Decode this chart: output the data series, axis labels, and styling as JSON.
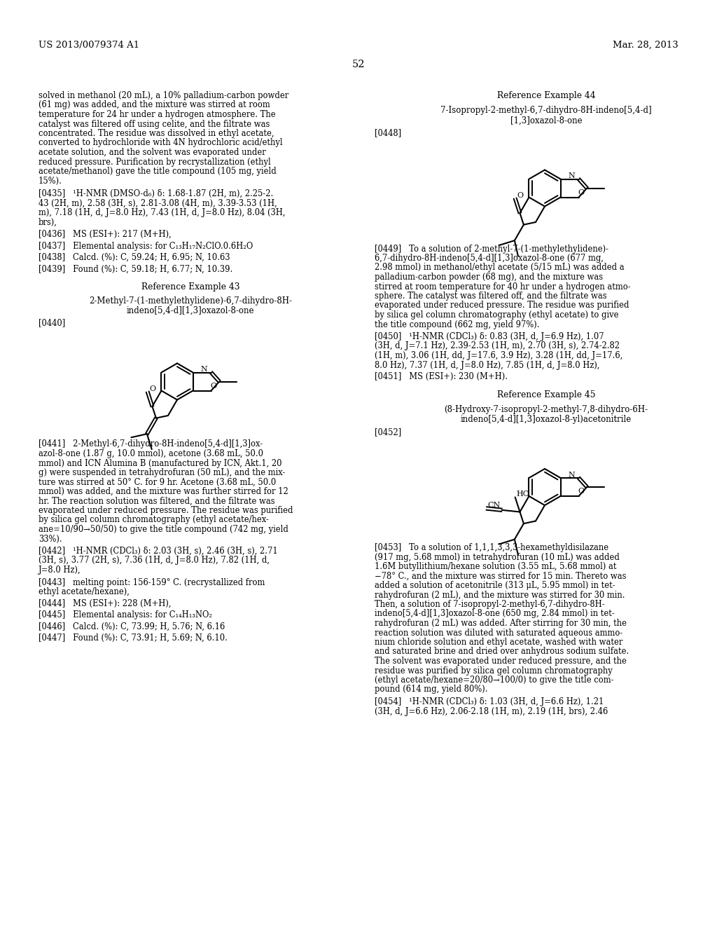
{
  "background_color": "#ffffff",
  "header_left": "US 2013/0079374 A1",
  "header_right": "Mar. 28, 2013",
  "page_number": "52",
  "left_col_intro": [
    "solved in methanol (20 mL), a 10% palladium-carbon powder",
    "(61 mg) was added, and the mixture was stirred at room",
    "temperature for 24 hr under a hydrogen atmosphere. The",
    "catalyst was filtered off using celite, and the filtrate was",
    "concentrated. The residue was dissolved in ethyl acetate,",
    "converted to hydrochloride with 4N hydrochloric acid/ethyl",
    "acetate solution, and the solvent was evaporated under",
    "reduced pressure. Purification by recrystallization (ethyl",
    "acetate/methanol) gave the title compound (105 mg, yield",
    "15%)."
  ],
  "p435": [
    "[0435]   ¹H-NMR (DMSO-d₆) δ: 1.68-1.87 (2H, m), 2.25-2.",
    "43 (2H, m), 2.58 (3H, s), 2.81-3.08 (4H, m), 3.39-3.53 (1H,",
    "m), 7.18 (1H, d, J=8.0 Hz), 7.43 (1H, d, J=8.0 Hz), 8.04 (3H,",
    "brs),"
  ],
  "p436": "[0436]   MS (ESI+): 217 (M+H),",
  "p437": "[0437]   Elemental analysis: for C₁₃H₁₇N₂ClO.0.6H₂O",
  "p438": "[0438]   Calcd. (%): C, 59.24; H, 6.95; N, 10.63",
  "p439": "[0439]   Found (%): C, 59.18; H, 6.77; N, 10.39.",
  "ref43_title": "Reference Example 43",
  "ref43_cmpd1": "2-Methyl-7-(1-methylethylidene)-6,7-dihydro-8H-",
  "ref43_cmpd2": "indeno[5,4-d][1,3]oxazol-8-one",
  "p440": "[0440]",
  "p441": [
    "[0441]   2-Methyl-6,7-dihydro-8H-indeno[5,4-d][1,3]ox-",
    "azol-8-one (1.87 g, 10.0 mmol), acetone (3.68 mL, 50.0",
    "mmol) and ICN Alumina B (manufactured by ICN, Akt.1, 20",
    "g) were suspended in tetrahydrofuran (50 mL), and the mix-",
    "ture was stirred at 50° C. for 9 hr. Acetone (3.68 mL, 50.0",
    "mmol) was added, and the mixture was further stirred for 12",
    "hr. The reaction solution was filtered, and the filtrate was",
    "evaporated under reduced pressure. The residue was purified",
    "by silica gel column chromatography (ethyl acetate/hex-",
    "ane=10/90→50/50) to give the title compound (742 mg, yield",
    "33%)."
  ],
  "p442": [
    "[0442]   ¹H-NMR (CDCl₃) δ: 2.03 (3H, s), 2.46 (3H, s), 2.71",
    "(3H, s), 3.77 (2H, s), 7.36 (1H, d, J=8.0 Hz), 7.82 (1H, d,",
    "J=8.0 Hz),"
  ],
  "p443": [
    "[0443]   melting point: 156-159° C. (recrystallized from",
    "ethyl acetate/hexane),"
  ],
  "p444": "[0444]   MS (ESI+): 228 (M+H),",
  "p445": "[0445]   Elemental analysis: for C₁₄H₁₃NO₂",
  "p446": "[0446]   Calcd. (%): C, 73.99; H, 5.76; N, 6.16",
  "p447": "[0447]   Found (%): C, 73.91; H, 5.69; N, 6.10.",
  "ref44_title": "Reference Example 44",
  "ref44_cmpd1": "7-Isopropyl-2-methyl-6,7-dihydro-8H-indeno[5,4-d]",
  "ref44_cmpd2": "[1,3]oxazol-8-one",
  "p448": "[0448]",
  "p449": [
    "[0449]   To a solution of 2-methyl-7-(1-methylethylidene)-",
    "6,7-dihydro-8H-indeno[5,4-d][1,3]oxazol-8-one (677 mg,",
    "2.98 mmol) in methanol/ethyl acetate (5/15 mL) was added a",
    "palladium-carbon powder (68 mg), and the mixture was",
    "stirred at room temperature for 40 hr under a hydrogen atmo-",
    "sphere. The catalyst was filtered off, and the filtrate was",
    "evaporated under reduced pressure. The residue was purified",
    "by silica gel column chromatography (ethyl acetate) to give",
    "the title compound (662 mg, yield 97%)."
  ],
  "p450": [
    "[0450]   ¹H-NMR (CDCl₃) δ: 0.83 (3H, d, J=6.9 Hz), 1.07",
    "(3H, d, J=7.1 Hz), 2.39-2.53 (1H, m), 2.70 (3H, s), 2.74-2.82",
    "(1H, m), 3.06 (1H, dd, J=17.6, 3.9 Hz), 3.28 (1H, dd, J=17.6,",
    "8.0 Hz), 7.37 (1H, d, J=8.0 Hz), 7.85 (1H, d, J=8.0 Hz),"
  ],
  "p451": "[0451]   MS (ESI+): 230 (M+H).",
  "ref45_title": "Reference Example 45",
  "ref45_cmpd1": "(8-Hydroxy-7-isopropyl-2-methyl-7,8-dihydro-6H-",
  "ref45_cmpd2": "indeno[5,4-d][1,3]oxazol-8-yl)acetonitrile",
  "p452": "[0452]",
  "p453": [
    "[0453]   To a solution of 1,1,1,3,3,3-hexamethyldisilazane",
    "(917 mg, 5.68 mmol) in tetrahydrofuran (10 mL) was added",
    "1.6M butyllithium/hexane solution (3.55 mL, 5.68 mmol) at",
    "−78° C., and the mixture was stirred for 15 min. Thereto was",
    "added a solution of acetonitrile (313 μL, 5.95 mmol) in tet-",
    "rahydrofuran (2 mL), and the mixture was stirred for 30 min.",
    "Then, a solution of 7-isopropyl-2-methyl-6,7-dihydro-8H-",
    "indeno[5,4-d][1,3]oxazol-8-one (650 mg, 2.84 mmol) in tet-",
    "rahydrofuran (2 mL) was added. After stirring for 30 min, the",
    "reaction solution was diluted with saturated aqueous ammo-",
    "nium chloride solution and ethyl acetate, washed with water",
    "and saturated brine and dried over anhydrous sodium sulfate.",
    "The solvent was evaporated under reduced pressure, and the",
    "residue was purified by silica gel column chromatography",
    "(ethyl acetate/hexane=20/80→100/0) to give the title com-",
    "pound (614 mg, yield 80%)."
  ],
  "p454": [
    "[0454]   ¹H-NMR (CDCl₃) δ: 1.03 (3H, d, J=6.6 Hz), 1.21",
    "(3H, d, J=6.6 Hz), 2.06-2.18 (1H, m), 2.19 (1H, brs), 2.46"
  ]
}
